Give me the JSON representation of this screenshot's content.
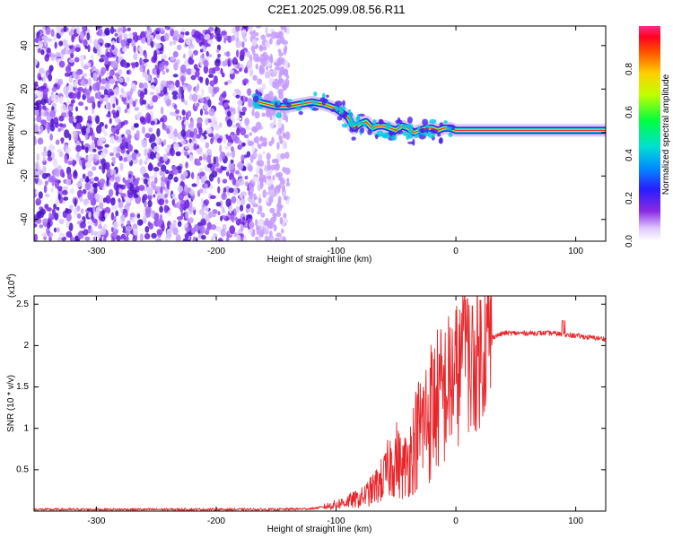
{
  "title": "C2E1.2025.099.08.56.R11",
  "colors": {
    "snr_line": "#e8262a",
    "spectrogram_noise": "#7a2be0",
    "ridge": "#ff2a2a"
  },
  "chart_data": [
    {
      "type": "heatmap",
      "xlabel": "Height of straight line (km)",
      "ylabel": "Frequency (Hz)",
      "xlim": [
        -352,
        125
      ],
      "ylim": [
        -50,
        49
      ],
      "xticks": [
        -300,
        -200,
        -100,
        0,
        100
      ],
      "yticks": [
        -40,
        -20,
        0,
        20,
        40
      ],
      "colorbar": {
        "label": "Normalized spectral amplitude",
        "range": [
          0,
          1
        ],
        "ticks": [
          0.0,
          0.2,
          0.4,
          0.6,
          0.8
        ]
      },
      "noise_region_x": [
        -352,
        -140
      ],
      "ridge": {
        "x": [
          -165,
          -150,
          -140,
          -130,
          -120,
          -110,
          -100,
          -95,
          -90,
          -85,
          -80,
          -75,
          -70,
          -65,
          -60,
          -55,
          -50,
          -45,
          -40,
          -35,
          -30,
          -25,
          -20,
          -15,
          -10,
          -5,
          0,
          5,
          10,
          20,
          40,
          60,
          80,
          100,
          125
        ],
        "y": [
          14,
          12,
          12,
          13,
          14,
          13,
          11,
          9,
          7,
          2,
          4,
          5,
          2,
          3,
          3,
          2,
          1,
          3,
          2,
          0,
          1,
          2,
          2,
          1,
          2,
          2,
          1,
          1,
          1,
          1,
          1,
          1,
          1,
          1,
          1
        ]
      }
    },
    {
      "type": "line",
      "xlabel": "Height of straight line (km)",
      "ylabel": "SNR (10 * v/v)",
      "y_multiplier_label": "(x10",
      "y_multiplier_exp": "4",
      "xlim": [
        -352,
        125
      ],
      "ylim": [
        0,
        2.6
      ],
      "xticks": [
        -300,
        -200,
        -100,
        0,
        100
      ],
      "yticks": [
        0.5,
        1.0,
        1.5,
        2.0,
        2.5
      ],
      "series": [
        {
          "x": [
            -352,
            -300,
            -200,
            -150,
            -120,
            -110,
            -100,
            -90,
            -80,
            -70,
            -60,
            -55,
            -50,
            -45,
            -40,
            -35,
            -30,
            -25,
            -20,
            -15,
            -10,
            -5,
            0,
            5,
            8,
            10,
            15,
            20,
            25,
            30,
            40,
            50,
            60,
            70,
            80,
            90,
            100,
            110,
            125
          ],
          "y": [
            0.02,
            0.02,
            0.02,
            0.02,
            0.03,
            0.05,
            0.08,
            0.12,
            0.15,
            0.25,
            0.4,
            0.55,
            0.65,
            0.5,
            0.6,
            0.8,
            1.0,
            1.1,
            1.25,
            1.35,
            1.4,
            1.55,
            1.65,
            1.7,
            2.2,
            1.75,
            1.8,
            1.9,
            2.05,
            2.1,
            2.15,
            2.15,
            2.15,
            2.15,
            2.15,
            2.13,
            2.12,
            2.1,
            2.08
          ]
        }
      ]
    }
  ]
}
